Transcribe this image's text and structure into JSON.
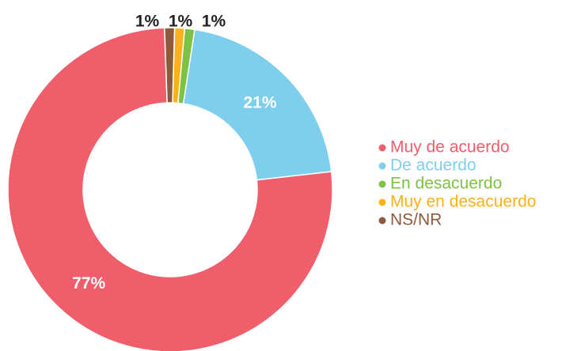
{
  "chart_data": {
    "type": "donut",
    "categories": [
      "Muy de acuerdo",
      "De acuerdo",
      "En desacuerdo",
      "Muy en desacuerdo",
      "NS/NR"
    ],
    "values": [
      77,
      21,
      1,
      1,
      1
    ],
    "value_labels": [
      "77%",
      "21%",
      "1%",
      "1%",
      "1%"
    ],
    "colors": [
      "#f05d6b",
      "#7ecfee",
      "#7dc242",
      "#fbb218",
      "#8c5a3c"
    ],
    "legend": "right"
  }
}
